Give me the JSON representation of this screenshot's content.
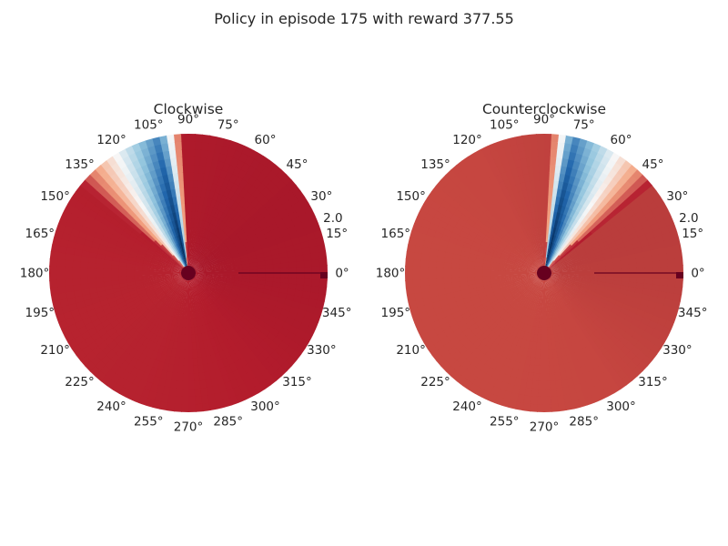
{
  "chart_data": {
    "type": "polar-heatmap",
    "title": "Policy in episode 175 with reward 377.55",
    "colormap": "RdBu",
    "colors": {
      "high": "#67001f",
      "red": "#b2182b",
      "light_red": "#f4a582",
      "white": "#f7f7f7",
      "light_blue": "#92c5de",
      "blue": "#2166ac",
      "dark_blue": "#053061"
    },
    "angle_tick_labels": [
      "0°",
      "15°",
      "30°",
      "45°",
      "60°",
      "75°",
      "90°",
      "105°",
      "120°",
      "135°",
      "150°",
      "165°",
      "180°",
      "195°",
      "210°",
      "225°",
      "240°",
      "255°",
      "270°",
      "285°",
      "300°",
      "315°",
      "330°",
      "345°"
    ],
    "radial_tick_labels": [
      "2.0"
    ],
    "radial_tick_angle_deg": 22.5,
    "radial_max": 2.0,
    "grid": false,
    "panels": [
      {
        "title": "Clockwise",
        "blue_band_angle_deg": [
          93,
          140
        ],
        "peak_blue_angle_deg": 102,
        "base_color": "#b31c2c"
      },
      {
        "title": "Counterclockwise",
        "blue_band_angle_deg": [
          40,
          87
        ],
        "peak_blue_angle_deg": 78,
        "base_color": "#c64640"
      }
    ]
  }
}
